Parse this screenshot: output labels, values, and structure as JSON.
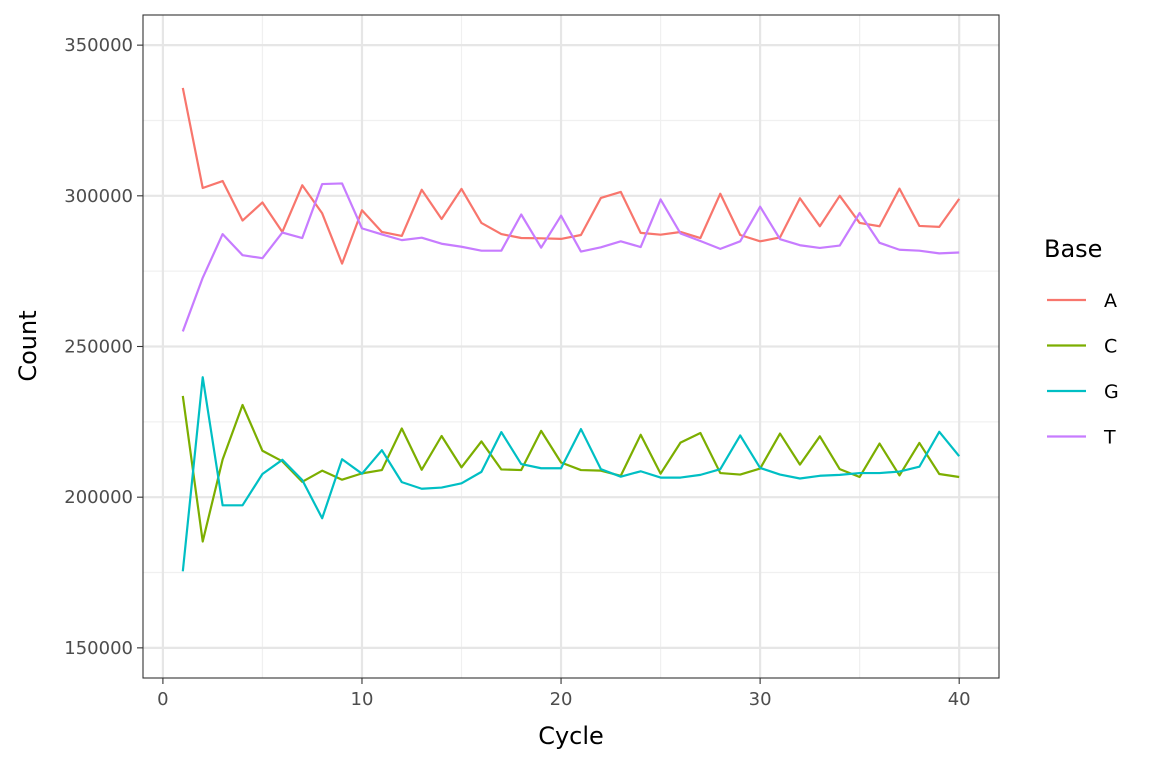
{
  "chart_data": {
    "type": "line",
    "xlabel": "Cycle",
    "ylabel": "Count",
    "xlim": [
      -1,
      42
    ],
    "ylim": [
      140000,
      360000
    ],
    "x_ticks": [
      0,
      10,
      20,
      30,
      40
    ],
    "x_tick_labels": [
      "0",
      "10",
      "20",
      "30",
      "40"
    ],
    "y_ticks": [
      150000,
      200000,
      250000,
      300000,
      350000
    ],
    "y_tick_labels": [
      "150000",
      "200000",
      "250000",
      "300000",
      "350000"
    ],
    "grid": true,
    "legend": {
      "title": "Base",
      "position": "right"
    },
    "x": [
      1,
      2,
      3,
      4,
      5,
      6,
      7,
      8,
      9,
      10,
      11,
      12,
      13,
      14,
      15,
      16,
      17,
      18,
      19,
      20,
      21,
      22,
      23,
      24,
      25,
      26,
      27,
      28,
      29,
      30,
      31,
      32,
      33,
      34,
      35,
      36,
      37,
      38,
      39,
      40
    ],
    "series": [
      {
        "name": "A",
        "color": "#F8766D",
        "values": [
          335800,
          302600,
          304900,
          291800,
          297800,
          288000,
          303500,
          294200,
          277500,
          295200,
          288000,
          286700,
          302000,
          292300,
          302300,
          291000,
          287300,
          286000,
          285900,
          285700,
          287000,
          299300,
          301300,
          287700,
          287100,
          288000,
          286000,
          300700,
          287000,
          284900,
          286200,
          299200,
          289900,
          300000,
          291000,
          289900,
          302400,
          290000,
          289700,
          299000
        ]
      },
      {
        "name": "C",
        "color": "#7CAE00",
        "values": [
          233600,
          185300,
          212500,
          230600,
          215400,
          211900,
          205100,
          208800,
          205800,
          207900,
          209000,
          222800,
          209100,
          220300,
          209900,
          218500,
          209200,
          209000,
          222000,
          211500,
          209000,
          208800,
          207100,
          220700,
          207800,
          218100,
          221300,
          208000,
          207500,
          209500,
          221100,
          210800,
          220200,
          209300,
          206700,
          217800,
          207200,
          218000,
          207700,
          206700
        ]
      },
      {
        "name": "G",
        "color": "#00BFC4",
        "values": [
          175400,
          239800,
          197300,
          197300,
          207700,
          212400,
          205700,
          193000,
          212600,
          207800,
          215600,
          205000,
          202800,
          203200,
          204600,
          208400,
          221600,
          211000,
          209600,
          209600,
          222600,
          209300,
          206800,
          208600,
          206500,
          206500,
          207400,
          209300,
          220500,
          209700,
          207500,
          206200,
          207100,
          207400,
          208000,
          208000,
          208500,
          210100,
          221700,
          213600
        ]
      },
      {
        "name": "T",
        "color": "#C77CFF",
        "values": [
          255000,
          272800,
          287300,
          280300,
          279300,
          287800,
          286000,
          303900,
          304100,
          289200,
          287200,
          285300,
          286100,
          284100,
          283100,
          281800,
          281800,
          293800,
          282800,
          293400,
          281500,
          282900,
          284900,
          283000,
          298800,
          287500,
          285000,
          282400,
          284900,
          296400,
          285600,
          283600,
          282700,
          283500,
          294300,
          284400,
          282100,
          281800,
          280900,
          281200
        ]
      }
    ]
  }
}
